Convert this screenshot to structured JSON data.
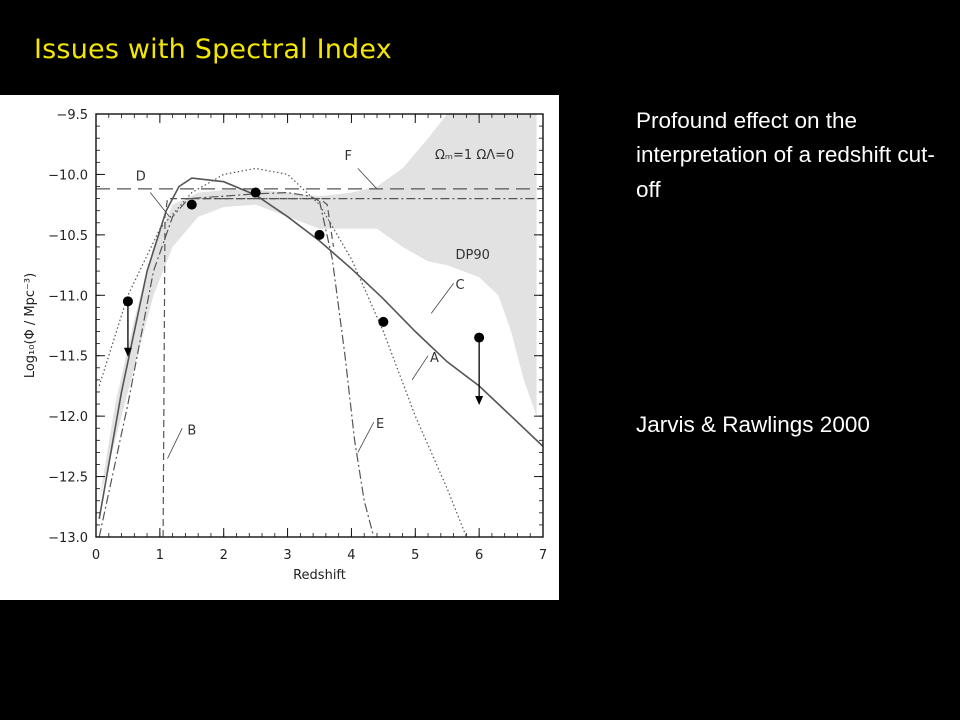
{
  "slide": {
    "title": "Issues with Spectral Index",
    "description": "Profound effect on the interpretation of a redshift cut-off",
    "citation": "Jarvis & Rawlings 2000"
  },
  "colors": {
    "background": "#000000",
    "title": "#f3e600",
    "text": "#ffffff",
    "shade": "#e2e2e2",
    "curve": "#555555"
  },
  "chart_data": {
    "type": "line",
    "xlabel": "Redshift",
    "ylabel": "Log₁₀(Φ / Mpc⁻³)",
    "xlim": [
      0,
      7
    ],
    "ylim": [
      -13.0,
      -9.5
    ],
    "xticks": [
      0,
      1,
      2,
      3,
      4,
      5,
      6,
      7
    ],
    "xtick_labels": [
      "0",
      "1",
      "2",
      "3",
      "4",
      "5",
      "6",
      "7"
    ],
    "yticks": [
      -9.5,
      -10.0,
      -10.5,
      -11.0,
      -11.5,
      -12.0,
      -12.5,
      -13.0
    ],
    "ytick_labels": [
      "−9.5",
      "−10.0",
      "−10.5",
      "−11.0",
      "−11.5",
      "−12.0",
      "−12.5",
      "−13.0"
    ],
    "cosmology_label": "Ωₘ=1  ΩΛ=0",
    "shaded_region": {
      "name": "DP90",
      "upper": [
        [
          0.05,
          -12.7
        ],
        [
          0.3,
          -11.9
        ],
        [
          0.6,
          -11.2
        ],
        [
          0.9,
          -10.6
        ],
        [
          1.2,
          -10.25
        ],
        [
          1.6,
          -10.15
        ],
        [
          2.0,
          -10.13
        ],
        [
          2.4,
          -10.12
        ],
        [
          3.0,
          -10.15
        ],
        [
          3.5,
          -10.18
        ],
        [
          4.0,
          -10.15
        ],
        [
          4.4,
          -10.1
        ],
        [
          4.8,
          -9.95
        ],
        [
          5.2,
          -9.7
        ],
        [
          5.5,
          -9.5
        ],
        [
          6.9,
          -9.5
        ]
      ],
      "lower": [
        [
          6.9,
          -12.0
        ],
        [
          6.7,
          -11.7
        ],
        [
          6.5,
          -11.3
        ],
        [
          6.3,
          -11.0
        ],
        [
          6.0,
          -10.85
        ],
        [
          5.5,
          -10.75
        ],
        [
          5.2,
          -10.72
        ],
        [
          4.8,
          -10.6
        ],
        [
          4.4,
          -10.45
        ],
        [
          4.0,
          -10.45
        ],
        [
          3.5,
          -10.45
        ],
        [
          3.0,
          -10.35
        ],
        [
          2.5,
          -10.25
        ],
        [
          2.0,
          -10.27
        ],
        [
          1.6,
          -10.35
        ],
        [
          1.2,
          -10.6
        ],
        [
          0.9,
          -11.0
        ],
        [
          0.6,
          -11.6
        ],
        [
          0.3,
          -12.2
        ],
        [
          0.05,
          -12.7
        ]
      ]
    },
    "series": [
      {
        "name": "A",
        "style": "dotted",
        "points": [
          [
            0.05,
            -11.75
          ],
          [
            0.5,
            -11.0
          ],
          [
            1.0,
            -10.45
          ],
          [
            1.5,
            -10.15
          ],
          [
            2.0,
            -10.0
          ],
          [
            2.5,
            -9.95
          ],
          [
            3.0,
            -10.0
          ],
          [
            3.5,
            -10.25
          ],
          [
            4.0,
            -10.7
          ],
          [
            4.5,
            -11.3
          ],
          [
            5.0,
            -12.0
          ],
          [
            5.5,
            -12.6
          ],
          [
            5.8,
            -13.0
          ]
        ]
      },
      {
        "name": "B",
        "style": "dashed",
        "points": [
          [
            1.05,
            -13.0
          ],
          [
            1.08,
            -10.35
          ],
          [
            1.12,
            -10.2
          ],
          [
            3.5,
            -10.2
          ],
          [
            3.62,
            -10.25
          ],
          [
            3.72,
            -10.6
          ]
        ]
      },
      {
        "name": "C",
        "style": "solid",
        "points": [
          [
            0.05,
            -12.85
          ],
          [
            0.4,
            -11.8
          ],
          [
            0.8,
            -10.8
          ],
          [
            1.1,
            -10.3
          ],
          [
            1.3,
            -10.1
          ],
          [
            1.5,
            -10.03
          ],
          [
            2.0,
            -10.06
          ],
          [
            2.5,
            -10.17
          ],
          [
            3.0,
            -10.35
          ],
          [
            3.5,
            -10.55
          ],
          [
            4.0,
            -10.78
          ],
          [
            4.5,
            -11.03
          ],
          [
            5.0,
            -11.3
          ],
          [
            5.5,
            -11.55
          ],
          [
            6.0,
            -11.75
          ],
          [
            6.5,
            -12.0
          ],
          [
            7.0,
            -12.25
          ]
        ]
      },
      {
        "name": "D",
        "style": "dash-dot",
        "points": [
          [
            0.05,
            -13.0
          ],
          [
            0.5,
            -11.9
          ],
          [
            0.9,
            -10.8
          ],
          [
            1.2,
            -10.35
          ],
          [
            1.45,
            -10.2
          ],
          [
            2.0,
            -10.18
          ],
          [
            2.5,
            -10.16
          ],
          [
            3.0,
            -10.15
          ],
          [
            3.35,
            -10.18
          ],
          [
            3.5,
            -10.22
          ]
        ]
      },
      {
        "name": "E",
        "style": "dash-dot",
        "points": [
          [
            3.5,
            -10.22
          ],
          [
            3.7,
            -10.7
          ],
          [
            3.9,
            -11.5
          ],
          [
            4.05,
            -12.2
          ],
          [
            4.2,
            -12.7
          ],
          [
            4.35,
            -13.0
          ]
        ]
      },
      {
        "name": "F",
        "style": "long-dashed",
        "points": [
          [
            0.0,
            -10.12
          ],
          [
            7.0,
            -10.12
          ]
        ]
      },
      {
        "name": "",
        "style": "dash-dot",
        "points": [
          [
            1.4,
            -10.2
          ],
          [
            7.0,
            -10.2
          ]
        ]
      }
    ],
    "data_points": [
      {
        "x": 0.5,
        "y": -11.05,
        "upper_limit": true,
        "arrow_to": -11.5
      },
      {
        "x": 1.5,
        "y": -10.25,
        "upper_limit": false
      },
      {
        "x": 2.5,
        "y": -10.15,
        "upper_limit": false
      },
      {
        "x": 3.5,
        "y": -10.5,
        "upper_limit": false
      },
      {
        "x": 4.5,
        "y": -11.22,
        "upper_limit": false
      },
      {
        "x": 6.0,
        "y": -11.35,
        "upper_limit": true,
        "arrow_to": -11.9
      }
    ],
    "curve_labels": [
      {
        "text": "A",
        "x": 5.3,
        "y": -11.55
      },
      {
        "text": "B",
        "x": 1.5,
        "y": -12.15
      },
      {
        "text": "C",
        "x": 5.7,
        "y": -10.95
      },
      {
        "text": "D",
        "x": 0.7,
        "y": -10.05
      },
      {
        "text": "E",
        "x": 4.45,
        "y": -12.1
      },
      {
        "text": "F",
        "x": 3.95,
        "y": -9.88
      },
      {
        "text": "DP90",
        "x": 5.9,
        "y": -10.7
      }
    ],
    "grid": false,
    "legend": "none"
  }
}
